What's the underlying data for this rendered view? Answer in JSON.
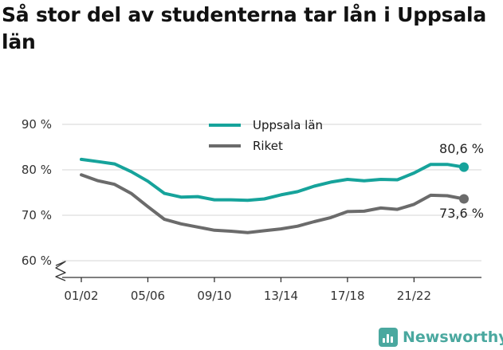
{
  "title": "Så stor del av studenterna tar lån i Uppsala län",
  "brand": {
    "name": "Newsworthy"
  },
  "colors": {
    "uppsala": "#16a39b",
    "riket": "#6b6b6b",
    "grid": "#d6d6d6",
    "axis": "#333333",
    "brand": "#4aa89f"
  },
  "chart_data": {
    "type": "line",
    "title": "Så stor del av studenterna tar lån i Uppsala län",
    "xlabel": "",
    "ylabel": "",
    "ylim": [
      55,
      94
    ],
    "yticks": [
      60,
      70,
      80,
      90
    ],
    "ytick_labels": [
      "60 %",
      "70 %",
      "80 %",
      "90 %"
    ],
    "y_axis_break": true,
    "x": [
      "01/02",
      "02/03",
      "03/04",
      "04/05",
      "05/06",
      "06/07",
      "07/08",
      "08/09",
      "09/10",
      "10/11",
      "11/12",
      "12/13",
      "13/14",
      "14/15",
      "15/16",
      "16/17",
      "17/18",
      "18/19",
      "19/20",
      "20/21",
      "21/22",
      "22/23",
      "23/24",
      "24/25"
    ],
    "xtick_labels": [
      "01/02",
      "05/06",
      "09/10",
      "13/14",
      "17/18",
      "21/22"
    ],
    "grid": true,
    "legend_position": "top-center",
    "series": [
      {
        "name": "Uppsala län",
        "color": "#16a39b",
        "values": [
          82.3,
          81.8,
          81.3,
          79.6,
          77.5,
          74.8,
          74.0,
          74.1,
          73.4,
          73.4,
          73.3,
          73.6,
          74.5,
          75.2,
          76.4,
          77.3,
          77.9,
          77.6,
          77.9,
          77.8,
          79.3,
          81.2,
          81.2,
          80.6
        ],
        "end_label": "80,6 %"
      },
      {
        "name": "Riket",
        "color": "#6b6b6b",
        "values": [
          78.9,
          77.6,
          76.8,
          74.8,
          71.9,
          69.1,
          68.1,
          67.4,
          66.7,
          66.5,
          66.2,
          66.6,
          67.0,
          67.6,
          68.6,
          69.5,
          70.8,
          70.9,
          71.6,
          71.3,
          72.4,
          74.4,
          74.3,
          73.6
        ],
        "end_label": "73,6 %"
      }
    ]
  }
}
